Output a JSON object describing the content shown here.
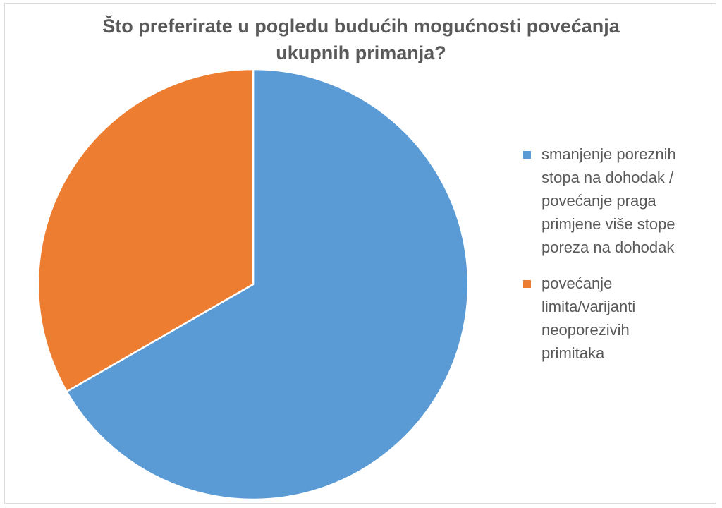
{
  "chart_data": {
    "type": "pie",
    "title": "Što preferirate u pogledu budućih mogućnosti povećanja ukupnih primanja?",
    "title_lines": [
      "Što preferirate u pogledu budućih mogućnosti povećanja",
      "ukupnih primanja?"
    ],
    "categories": [
      "smanjenje poreznih stopa na dohodak / povećanje praga primjene više stope poreza na dohodak",
      "povećanje limita/varijanti neoporezivih primitaka"
    ],
    "legend_lines": [
      "smanjenje poreznih\nstopa na dohodak /\npovećanje praga\nprimjene više stope\nporeza na dohodak",
      "povećanje\nlimita/varijanti\nneoporezivih\nprimitaka"
    ],
    "values": [
      66.7,
      33.3
    ],
    "colors": [
      "#5b9bd5",
      "#ed7d31"
    ],
    "legend_position": "right"
  }
}
